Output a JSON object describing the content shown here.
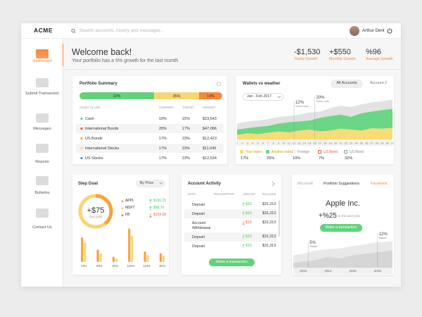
{
  "header": {
    "brand": "ACME",
    "search": "Search accounts, history and messages...",
    "user": "Arthur Dent"
  },
  "sidebar": [
    "Dashboard",
    "Submit Transaction",
    "Messages",
    "Reports",
    "Bulletins",
    "Contact Us"
  ],
  "welcome": {
    "title": "Welcome back!",
    "subtitle": "Your portfolio has a 5% growth for the last month"
  },
  "stats": [
    {
      "value": "-$1,530",
      "label": "Yearly Growth"
    },
    {
      "value": "+$550",
      "label": "Monthly Growth"
    },
    {
      "value": "%96",
      "label": "Average Growth"
    }
  ],
  "portfolio_summary": {
    "title": "Portfolio Summary",
    "allocation": [
      {
        "label": "10%",
        "color": "#62d27c"
      },
      {
        "label": "35%",
        "color": "#f7d774"
      },
      {
        "label": "10%",
        "color": "#f5893a"
      }
    ],
    "table": {
      "columns": [
        "ASSET CLASS",
        "CURRENT",
        "TARGET",
        "AMOUNT"
      ],
      "rows": [
        [
          "Cash",
          "10%",
          "15%",
          "$23,543"
        ],
        [
          "International Bonds",
          "20%",
          "17%",
          "$47,086"
        ],
        [
          "US Bonds",
          "17%",
          "23%",
          "$12,423"
        ],
        [
          "International Stocks",
          "17%",
          "23%",
          "$11,645"
        ],
        [
          "US Stocks",
          "17%",
          "23%",
          "$12,534"
        ]
      ],
      "dot_colors": [
        "#62d27c",
        "#ef5b45",
        "#f5a33c",
        "#f7d774",
        "#4a90e2"
      ]
    }
  },
  "wallets": {
    "title": "Wallets vs weather",
    "tabs": [
      "All Accounts",
      "Account 2"
    ],
    "range": "Jan - Feb 2017",
    "chart": {
      "type": "area",
      "x": [
        1,
        3,
        5,
        7,
        9,
        11,
        13,
        15,
        17,
        19,
        21,
        23,
        25,
        27,
        29,
        31
      ],
      "xlim": [
        1,
        31
      ],
      "xticks": [
        1,
        2,
        3,
        4,
        5,
        6,
        7,
        8,
        9,
        10,
        11,
        12,
        13,
        14,
        15,
        16,
        17,
        18,
        19,
        20,
        21,
        22,
        23,
        24,
        25,
        26,
        27,
        28,
        29,
        30,
        31
      ],
      "ylim": [
        0,
        100
      ],
      "series": [
        {
          "name": "Your index",
          "color": "#f7dc78",
          "total": "17%",
          "values": [
            10,
            14,
            12,
            15,
            18,
            16,
            20,
            22,
            18,
            20,
            24,
            22,
            20,
            25,
            24,
            26
          ]
        },
        {
          "name": "Another index",
          "color": "#6bd685",
          "total": "25%",
          "values": [
            22,
            25,
            28,
            30,
            35,
            38,
            40,
            42,
            48,
            52,
            55,
            50,
            58,
            62,
            65,
            68
          ]
        },
        {
          "name": "Foreign",
          "color": "#e2e2e2",
          "total": "10%",
          "values": [
            35,
            40,
            42,
            45,
            50,
            52,
            55,
            60,
            62,
            70,
            75,
            72,
            78,
            82,
            85,
            88
          ]
        }
      ],
      "legend_extra": [
        {
          "name": "US Bond",
          "total": "7%",
          "color": "#ef5b45"
        },
        {
          "name": "US Bond",
          "total": "32%",
          "color": "#999999"
        }
      ],
      "annotations": [
        {
          "x": 12,
          "label": "12%",
          "note": "Some note"
        },
        {
          "x": 16,
          "label": "20%",
          "note": "Some note"
        }
      ]
    }
  },
  "step_goal": {
    "title": "Step Goal",
    "sort": "By Price",
    "profit": "+$75",
    "profit_label": "Your profit",
    "stocks": [
      {
        "name": "APPL",
        "price": "$136.23",
        "trend": "up"
      },
      {
        "name": "MSFT",
        "price": "$58.70",
        "trend": "up"
      },
      {
        "name": "FB",
        "price": "$139.08",
        "trend": "down"
      }
    ],
    "chart": {
      "type": "bar",
      "categories": [
        "7/01",
        "8/01",
        "9/01",
        "10/01",
        "11/01",
        "8/01"
      ],
      "ylim": [
        0,
        100
      ],
      "series": [
        {
          "color": "#f5a33c",
          "values": [
            70,
            35,
            15,
            95,
            30,
            25
          ]
        },
        {
          "color": "#f7d774",
          "values": [
            55,
            25,
            10,
            75,
            20,
            18
          ]
        }
      ]
    }
  },
  "account_activity": {
    "title": "Account Activity",
    "columns": [
      "DATE",
      "DESCRIPTION",
      "AMOUNT",
      "BALANCE"
    ],
    "rows": [
      {
        "description": "Deposit",
        "amount": "$15",
        "balance": "$31,313",
        "direction": "in"
      },
      {
        "description": "Deposit",
        "amount": "$15",
        "balance": "$31,313",
        "direction": "in"
      },
      {
        "description": "Account Withdrawal",
        "amount": "$15",
        "balance": "$31,313",
        "direction": "out"
      },
      {
        "description": "Deposit",
        "amount": "$15",
        "balance": "$31,313",
        "direction": "in"
      },
      {
        "description": "Deposit",
        "amount": "$15",
        "balance": "$31,313",
        "direction": "in"
      }
    ],
    "button": "Make a transaction"
  },
  "suggestions": {
    "tabs": [
      "Microsoft",
      "Portfolio Suggestions",
      "Facebook"
    ],
    "company": "Apple Inc.",
    "growth": "+%25",
    "growth_label": "In the past year",
    "button": "Make a transaction",
    "chart": {
      "type": "area",
      "x": [
        2012.6,
        2013,
        2013.5,
        2014,
        2014.5,
        2015,
        2015.5,
        2016,
        2016.6
      ],
      "xlim": [
        2012.6,
        2016.6
      ],
      "xticks": [
        2013,
        2014,
        2015,
        2016
      ],
      "ylim": [
        0,
        100
      ],
      "series": [
        {
          "color": "#d6d6d6",
          "values": [
            15,
            20,
            25,
            35,
            30,
            40,
            45,
            50,
            55
          ]
        },
        {
          "color": "#e9e9e9",
          "values": [
            40,
            45,
            55,
            60,
            62,
            70,
            75,
            82,
            85
          ]
        }
      ],
      "annotations": [
        {
          "x": 2013.2,
          "label": "5%",
          "note": "Stable"
        },
        {
          "x": 2016,
          "label": "12%",
          "note": "Stable"
        }
      ]
    }
  }
}
